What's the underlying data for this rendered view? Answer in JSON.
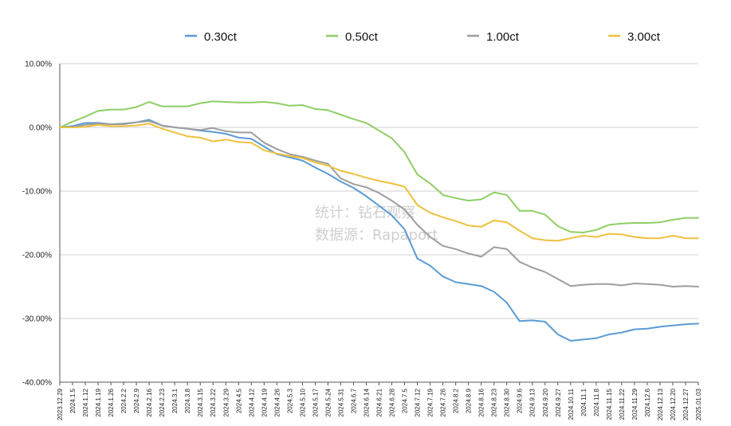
{
  "chart_data": {
    "type": "line",
    "title": "",
    "xlabel": "",
    "ylabel": "",
    "ylim": [
      -40,
      10
    ],
    "yticks": [
      10,
      0,
      -10,
      -20,
      -30,
      -40
    ],
    "ytick_labels": [
      "10.00%",
      "0.00%",
      "-10.00%",
      "-20.00%",
      "-30.00%",
      "-40.00%"
    ],
    "grid": "horizontal",
    "legend_position": "top",
    "watermark": [
      "统计：钻石观察",
      "数据源：Rapaport"
    ],
    "x": [
      "2023.12.29",
      "2024.1.5",
      "2024.1.12",
      "2024.1.19",
      "2024.1.26",
      "2024.2.2",
      "2024.2.9",
      "2024.2.16",
      "2024.2.23",
      "2024.3.1",
      "2024.3.8",
      "2024.3.15",
      "2024.3.22",
      "2024.3.29",
      "2024.4.5",
      "2024.4.12",
      "2024.4.19",
      "2024.4.26",
      "2024.5.3",
      "2024.5.10",
      "2024.5.17",
      "2024.5.24",
      "2024.5.31",
      "2024.6.7",
      "2024.6.14",
      "2024.6.21",
      "2024.6.28",
      "2024.7.5",
      "2024.7.12",
      "2024.7.19",
      "2024.7.26",
      "2024.8.2",
      "2024.8.9",
      "2024.8.16",
      "2024.8.23",
      "2024.8.30",
      "2024.9.6",
      "2024.9.13",
      "2024.9.20",
      "2024.9.27",
      "2024.10.11",
      "2024.11.1",
      "2024.11.8",
      "2024.11.15",
      "2024.11.22",
      "2024.11.29",
      "2024.12.6",
      "2024.12.13",
      "2024.12.20",
      "2024.12.27",
      "2025.01.03"
    ],
    "series": [
      {
        "name": "0.30ct",
        "color": "#5b9bd5",
        "values": [
          0,
          0.2,
          0.7,
          0.7,
          0.5,
          0.6,
          0.8,
          1.2,
          0.3,
          0,
          -0.2,
          -0.5,
          -0.7,
          -1.0,
          -1.6,
          -1.8,
          -3.0,
          -4.2,
          -4.7,
          -5.2,
          -6.3,
          -7.3,
          -8.5,
          -9.5,
          -10.8,
          -12.3,
          -13.8,
          -16.0,
          -20.6,
          -21.7,
          -23.4,
          -24.3,
          -24.6,
          -24.9,
          -25.8,
          -27.5,
          -30.4,
          -30.3,
          -30.5,
          -32.5,
          -33.5,
          -33.3,
          -33.1,
          -32.5,
          -32.2,
          -31.7,
          -31.6,
          -31.3,
          -31.1,
          -30.9,
          -30.8
        ]
      },
      {
        "name": "0.50ct",
        "color": "#8fce67",
        "values": [
          0,
          0.9,
          1.7,
          2.6,
          2.8,
          2.8,
          3.2,
          4.0,
          3.3,
          3.3,
          3.3,
          3.8,
          4.1,
          4.0,
          3.9,
          3.9,
          4.0,
          3.8,
          3.4,
          3.5,
          2.9,
          2.7,
          2.0,
          1.3,
          0.7,
          -0.5,
          -1.7,
          -3.9,
          -7.4,
          -8.8,
          -10.6,
          -11.1,
          -11.5,
          -11.3,
          -10.2,
          -10.6,
          -13.1,
          -13.1,
          -13.7,
          -15.5,
          -16.4,
          -16.5,
          -16.1,
          -15.3,
          -15.1,
          -15.0,
          -15.0,
          -14.9,
          -14.5,
          -14.2,
          -14.2
        ]
      },
      {
        "name": "1.00ct",
        "color": "#9e9e9e",
        "values": [
          0,
          0,
          0.4,
          0.6,
          0.5,
          0.5,
          0.8,
          1.0,
          0.3,
          0,
          -0.2,
          -0.4,
          -0.1,
          -0.6,
          -0.8,
          -0.8,
          -2.4,
          -3.4,
          -4.2,
          -4.6,
          -5.2,
          -5.7,
          -8.0,
          -8.9,
          -9.4,
          -10.3,
          -11.5,
          -12.9,
          -15.3,
          -17.2,
          -18.6,
          -19.1,
          -19.8,
          -20.3,
          -18.8,
          -19.1,
          -21.1,
          -22.0,
          -22.7,
          -23.8,
          -24.9,
          -24.7,
          -24.6,
          -24.6,
          -24.8,
          -24.5,
          -24.6,
          -24.7,
          -25.0,
          -24.9,
          -25.0
        ]
      },
      {
        "name": "3.00ct",
        "color": "#eec13d",
        "values": [
          0,
          0,
          0.1,
          0.4,
          0.2,
          0.2,
          0.3,
          0.6,
          -0.2,
          -0.8,
          -1.4,
          -1.6,
          -2.2,
          -1.9,
          -2.3,
          -2.4,
          -3.6,
          -4.1,
          -4.5,
          -4.8,
          -5.5,
          -6.0,
          -6.8,
          -7.3,
          -7.9,
          -8.4,
          -8.8,
          -9.3,
          -12.2,
          -13.4,
          -14.1,
          -14.7,
          -15.4,
          -15.6,
          -14.6,
          -14.9,
          -16.2,
          -17.4,
          -17.7,
          -17.8,
          -17.4,
          -17.0,
          -17.2,
          -16.7,
          -16.8,
          -17.2,
          -17.4,
          -17.4,
          -17.0,
          -17.4,
          -17.4
        ]
      }
    ]
  }
}
